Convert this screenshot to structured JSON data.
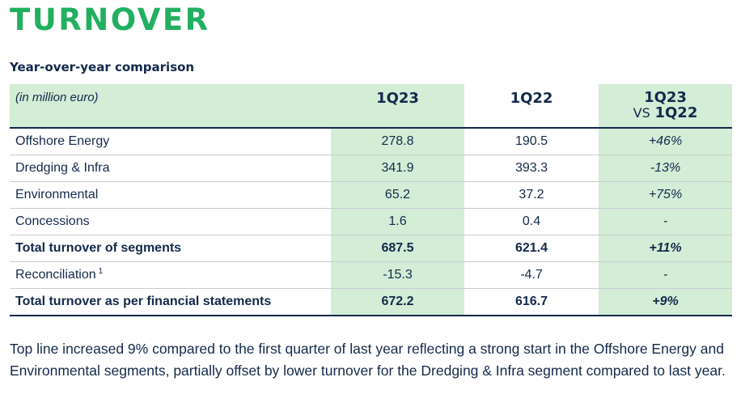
{
  "title": "TURNOVER",
  "subtitle": "Year-over-year comparison",
  "table": {
    "unit_label": "(in million euro)",
    "col1": "1Q23",
    "col2": "1Q22",
    "col3_line1": "1Q23",
    "col3_vs": "VS",
    "col3_line2": "1Q22",
    "rows": [
      {
        "label": "Offshore Energy",
        "q23": "278.8",
        "q22": "190.5",
        "change": "+46%"
      },
      {
        "label": "Dredging & Infra",
        "q23": "341.9",
        "q22": "393.3",
        "change": "-13%"
      },
      {
        "label": "Environmental",
        "q23": "65.2",
        "q22": "37.2",
        "change": "+75%"
      },
      {
        "label": "Concessions",
        "q23": "1.6",
        "q22": "0.4",
        "change": "-"
      },
      {
        "label": "Total turnover of segments",
        "q23": "687.5",
        "q22": "621.4",
        "change": "+11%"
      },
      {
        "label": "Reconciliation",
        "footnote": "1",
        "q23": "-15.3",
        "q22": "-4.7",
        "change": "-"
      },
      {
        "label": "Total turnover as per financial statements",
        "q23": "672.2",
        "q22": "616.7",
        "change": "+9%"
      }
    ]
  },
  "paragraph": "Top line increased 9% compared to the first quarter of last year reflecting a strong start in the Offshore Energy and Environmental segments, partially offset by lower turnover for the Dredging & Infra segment compared to last year."
}
